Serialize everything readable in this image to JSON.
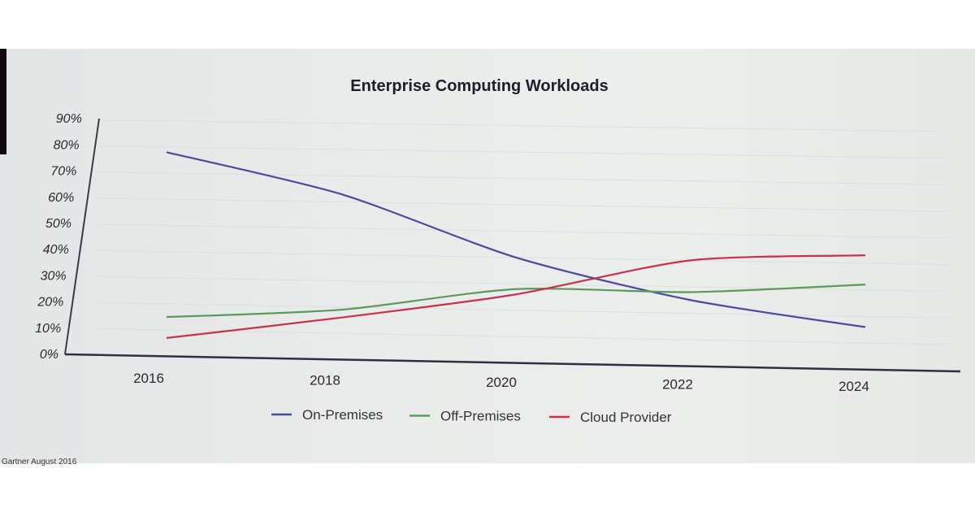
{
  "chart_data": {
    "type": "line",
    "title": "Enterprise Computing Workloads",
    "xlabel": "",
    "ylabel": "",
    "x": [
      "2016",
      "2018",
      "2020",
      "2022",
      "2024"
    ],
    "yticks": [
      "0%",
      "10%",
      "20%",
      "30%",
      "40%",
      "50%",
      "60%",
      "70%",
      "80%",
      "90%"
    ],
    "ylim": [
      0,
      90
    ],
    "grid": true,
    "legend_position": "bottom",
    "series": [
      {
        "name": "On-Premises",
        "color": "#4a4aa0",
        "values": [
          78,
          63,
          40,
          25,
          16
        ]
      },
      {
        "name": "Off-Premises",
        "color": "#5a9a5a",
        "values": [
          15,
          19,
          28,
          28,
          32
        ]
      },
      {
        "name": "Cloud Provider",
        "color": "#c8324a",
        "values": [
          7,
          16,
          26,
          40,
          43
        ]
      }
    ],
    "source_note": "Gartner August 2016"
  }
}
